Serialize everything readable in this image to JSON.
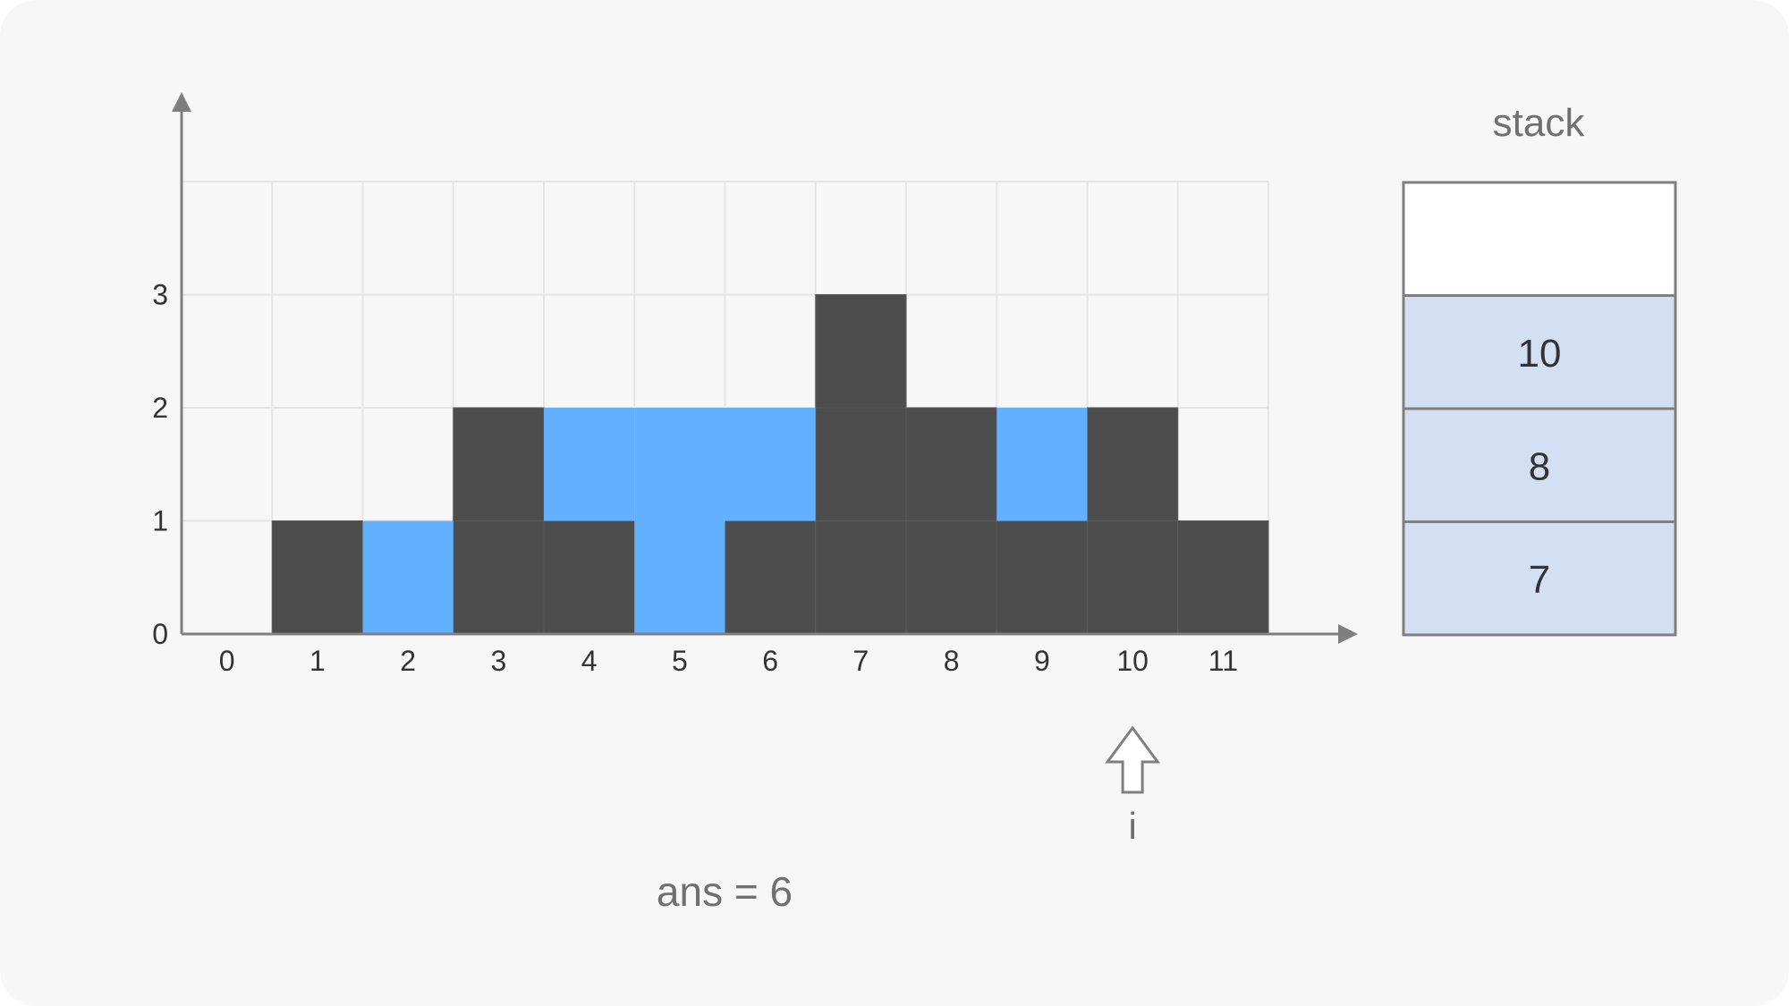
{
  "chart_data": {
    "type": "bar",
    "x_ticks": [
      "0",
      "1",
      "2",
      "3",
      "4",
      "5",
      "6",
      "7",
      "8",
      "9",
      "10",
      "11"
    ],
    "y_ticks": [
      "0",
      "1",
      "2",
      "3"
    ],
    "heights": [
      0,
      1,
      0,
      2,
      1,
      0,
      1,
      3,
      2,
      1,
      2,
      1
    ],
    "water_cells": [
      {
        "x": 2,
        "y": 0
      },
      {
        "x": 4,
        "y": 1
      },
      {
        "x": 5,
        "y": 0
      },
      {
        "x": 5,
        "y": 1
      },
      {
        "x": 6,
        "y": 1
      },
      {
        "x": 9,
        "y": 1
      }
    ],
    "ylim": [
      0,
      4
    ],
    "grid": true
  },
  "stack": {
    "label": "stack",
    "slots": [
      "",
      "10",
      "8",
      "7"
    ]
  },
  "pointer": {
    "label": "i",
    "index": 10
  },
  "answer": {
    "text": "ans = 6"
  },
  "colors": {
    "bar": "#4d4d4d",
    "water": "#63b0ff",
    "stack_fill": "#d3e0f4",
    "axis": "#7f7f7f",
    "grid": "#e6e6e6"
  }
}
